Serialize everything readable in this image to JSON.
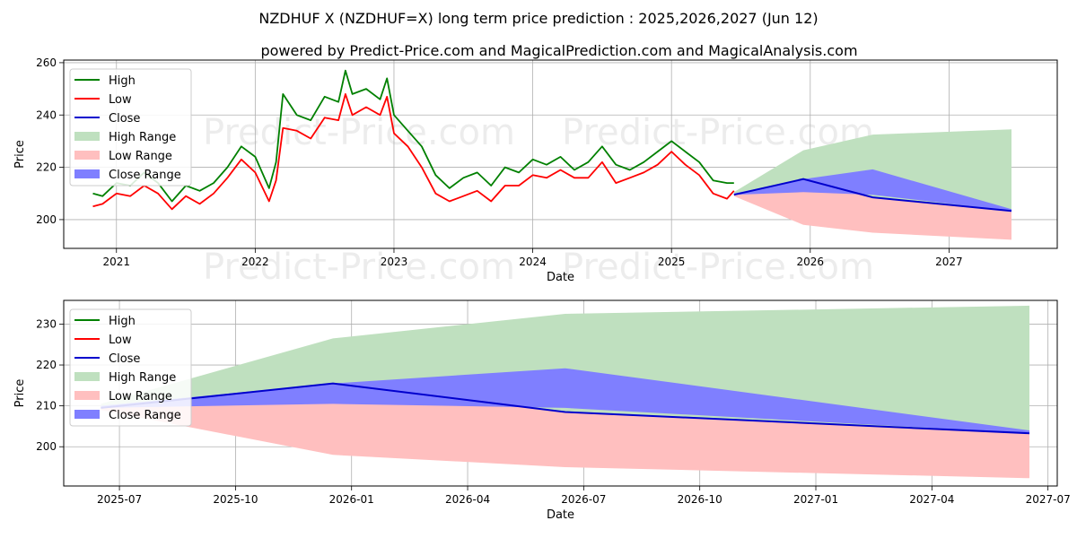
{
  "title": "NZDHUF X (NZDHUF=X) long term price prediction : 2025,2026,2027 (Jun 12)",
  "subtitle": "powered by Predict-Price.com and MagicalPrediction.com and MagicalAnalysis.com",
  "watermark": "Predict-Price.com",
  "colors": {
    "high": "#008000",
    "low": "#ff0000",
    "close": "#0000cd",
    "high_range": "#bfe0bf",
    "low_range": "#ffbfbf",
    "close_range": "#7f7fff"
  },
  "chart_data": [
    {
      "type": "line",
      "title": "Full history and forecast",
      "xlabel": "Date",
      "ylabel": "Price",
      "xlim": [
        2020.62,
        2027.78
      ],
      "ylim": [
        189,
        261
      ],
      "xticks": [
        2021,
        2022,
        2023,
        2024,
        2025,
        2026,
        2027
      ],
      "xtick_labels": [
        "2021",
        "2022",
        "2023",
        "2024",
        "2025",
        "2026",
        "2027"
      ],
      "yticks": [
        200,
        220,
        240,
        260
      ],
      "ytick_labels": [
        "200",
        "220",
        "240",
        "260"
      ],
      "legend": [
        "High",
        "Low",
        "Close",
        "High Range",
        "Low Range",
        "Close Range"
      ],
      "legend_position": "top-left",
      "grid": true,
      "history": {
        "x": [
          2020.83,
          2020.9,
          2021.0,
          2021.1,
          2021.2,
          2021.3,
          2021.4,
          2021.5,
          2021.6,
          2021.7,
          2021.8,
          2021.9,
          2022.0,
          2022.1,
          2022.15,
          2022.2,
          2022.3,
          2022.4,
          2022.5,
          2022.6,
          2022.65,
          2022.7,
          2022.8,
          2022.9,
          2022.95,
          2023.0,
          2023.1,
          2023.2,
          2023.3,
          2023.4,
          2023.5,
          2023.6,
          2023.7,
          2023.8,
          2023.9,
          2024.0,
          2024.1,
          2024.2,
          2024.3,
          2024.4,
          2024.5,
          2024.6,
          2024.7,
          2024.8,
          2024.9,
          2025.0,
          2025.1,
          2025.2,
          2025.3,
          2025.4,
          2025.45
        ],
        "high": [
          210,
          209,
          214,
          213,
          218,
          214,
          207,
          213,
          211,
          214,
          220,
          228,
          224,
          212,
          222,
          248,
          240,
          238,
          247,
          245,
          257,
          248,
          250,
          246,
          254,
          240,
          234,
          228,
          217,
          212,
          216,
          218,
          213,
          220,
          218,
          223,
          221,
          224,
          219,
          222,
          228,
          221,
          219,
          222,
          226,
          230,
          226,
          222,
          215,
          214,
          214
        ],
        "low": [
          205,
          206,
          210,
          209,
          213,
          210,
          204,
          209,
          206,
          210,
          216,
          223,
          218,
          207,
          215,
          235,
          234,
          231,
          239,
          238,
          248,
          240,
          243,
          240,
          247,
          233,
          228,
          220,
          210,
          207,
          209,
          211,
          207,
          213,
          213,
          217,
          216,
          219,
          216,
          216,
          222,
          214,
          216,
          218,
          221,
          226,
          221,
          217,
          210,
          208,
          211
        ]
      },
      "forecast": {
        "x": [
          2025.45,
          2025.95,
          2026.45,
          2027.45
        ],
        "close": [
          209.5,
          215.5,
          208.5,
          203.3
        ],
        "high_range_upper": [
          210.5,
          226.5,
          232.5,
          234.5
        ],
        "low_range_lower": [
          209.0,
          198.0,
          195.0,
          192.3
        ],
        "close_range_upper": [
          210.0,
          215.5,
          219.2,
          204.0
        ],
        "close_range_lower": [
          209.5,
          210.5,
          209.5,
          203.3
        ]
      }
    },
    {
      "type": "area",
      "title": "Forecast detail",
      "xlabel": "Date",
      "ylabel": "Price",
      "xlim": [
        2025.38,
        2027.52
      ],
      "ylim": [
        190.4,
        235.8
      ],
      "xticks": [
        2025.5,
        2025.75,
        2026.0,
        2026.25,
        2026.5,
        2026.75,
        2027.0,
        2027.25,
        2027.5
      ],
      "xtick_labels": [
        "2025-07",
        "2025-10",
        "2026-01",
        "2026-04",
        "2026-07",
        "2026-10",
        "2027-01",
        "2027-04",
        "2027-07"
      ],
      "yticks": [
        200,
        210,
        220,
        230
      ],
      "ytick_labels": [
        "200",
        "210",
        "220",
        "230"
      ],
      "legend": [
        "High",
        "Low",
        "Close",
        "High Range",
        "Low Range",
        "Close Range"
      ],
      "legend_position": "top-left",
      "grid": true,
      "forecast": {
        "x": [
          2025.46,
          2025.96,
          2026.46,
          2027.46
        ],
        "close": [
          209.5,
          215.5,
          208.5,
          203.3
        ],
        "high_range_upper": [
          210.5,
          226.5,
          232.5,
          234.5
        ],
        "low_range_lower": [
          209.0,
          198.0,
          195.0,
          192.3
        ],
        "close_range_upper": [
          210.0,
          215.5,
          219.2,
          204.0
        ],
        "close_range_lower": [
          209.5,
          210.5,
          209.5,
          203.3
        ]
      }
    }
  ]
}
